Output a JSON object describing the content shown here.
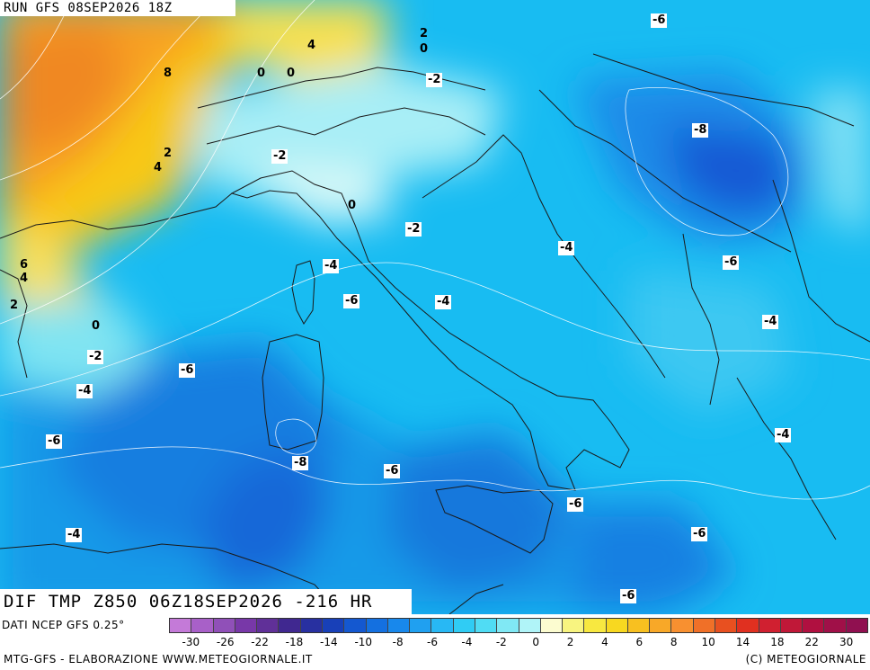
{
  "header": {
    "run": "RUN GFS 08SEP2026 18Z"
  },
  "variable_label": "DIF TMP Z850 06Z18SEP2026 -216 HR",
  "source_label": "DATI NCEP GFS 0.25°",
  "footer": {
    "left": "MTG-GFS - ELABORAZIONE WWW.METEOGIORNALE.IT",
    "right": "(C) METEOGIORNALE"
  },
  "legend": {
    "colors": [
      "#c47ad8",
      "#a860c8",
      "#9050b8",
      "#7838a8",
      "#603098",
      "#402890",
      "#2830a0",
      "#1840b8",
      "#1458d0",
      "#1470e0",
      "#1888ec",
      "#20a0f0",
      "#28b8f4",
      "#30ccf4",
      "#50dcf4",
      "#80e8f4",
      "#b0f4f8",
      "#fcfcd0",
      "#f8f480",
      "#f8e840",
      "#f8d820",
      "#f8c020",
      "#f8a828",
      "#f89030",
      "#f07028",
      "#e85020",
      "#e03020",
      "#d02030",
      "#c01838",
      "#b01040",
      "#a01048",
      "#901050"
    ],
    "tick_labels": [
      "-30",
      "-26",
      "-22",
      "-18",
      "-14",
      "-10",
      "-8",
      "-6",
      "-4",
      "-2",
      "0",
      "2",
      "4",
      "6",
      "8",
      "10",
      "14",
      "18",
      "22",
      "30"
    ]
  },
  "contour_labels": [
    "-6",
    "2",
    "0",
    "4",
    "8",
    "0",
    "0",
    "-2",
    "2",
    "4",
    "-2",
    "-8",
    "0",
    "-2",
    "-4",
    "-4",
    "6",
    "4",
    "-6",
    "-4",
    "2",
    "0",
    "-4",
    "-2",
    "-6",
    "-4",
    "-6",
    "-4",
    "-8",
    "-6",
    "-6",
    "-4",
    "-6",
    "-6"
  ]
}
